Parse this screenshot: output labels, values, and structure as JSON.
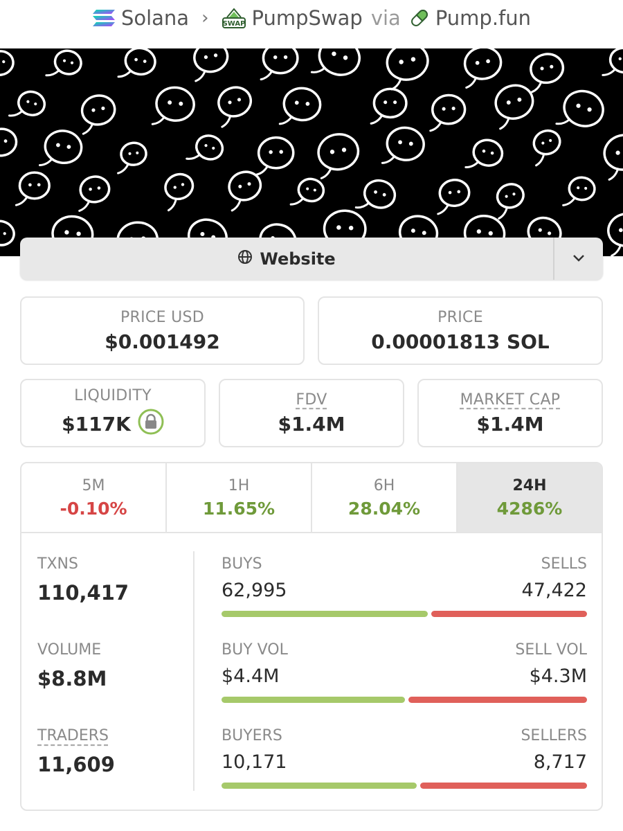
{
  "breadcrumb": {
    "chain": "Solana",
    "dex": "PumpSwap",
    "via": "via",
    "launchpad": "Pump.fun",
    "dex_badge": "SWAP"
  },
  "website_button": {
    "label": "Website"
  },
  "price_usd": {
    "label": "PRICE USD",
    "value": "$0.001492"
  },
  "price_native": {
    "label": "PRICE",
    "value": "0.00001813 SOL"
  },
  "liquidity": {
    "label": "LIQUIDITY",
    "value": "$117K"
  },
  "fdv": {
    "label": "FDV",
    "value": "$1.4M"
  },
  "market_cap": {
    "label": "MARKET CAP",
    "value": "$1.4M"
  },
  "periods": [
    {
      "label": "5M",
      "value": "-0.10%",
      "trend": "negative"
    },
    {
      "label": "1H",
      "value": "11.65%",
      "trend": "positive"
    },
    {
      "label": "6H",
      "value": "28.04%",
      "trend": "positive"
    },
    {
      "label": "24H",
      "value": "4286%",
      "trend": "positive",
      "selected": true
    }
  ],
  "stats": {
    "txns": {
      "label": "TXNS",
      "value": "110,417"
    },
    "volume": {
      "label": "VOLUME",
      "value": "$8.8M"
    },
    "traders": {
      "label": "TRADERS",
      "value": "11,609"
    },
    "buys": {
      "label": "BUYS",
      "value": "62,995"
    },
    "sells": {
      "label": "SELLS",
      "value": "47,422"
    },
    "buy_vol": {
      "label": "BUY VOL",
      "value": "$4.4M"
    },
    "sell_vol": {
      "label": "SELL VOL",
      "value": "$4.3M"
    },
    "buyers": {
      "label": "BUYERS",
      "value": "10,171"
    },
    "sellers": {
      "label": "SELLERS",
      "value": "8,717"
    }
  },
  "ratios": {
    "txns_buy_fraction": 0.57,
    "volume_buy_fraction": 0.506,
    "traders_buy_fraction": 0.538
  },
  "colors": {
    "positive": "#6f9a3a",
    "negative": "#d64545",
    "buy_bar": "#a6c96a",
    "sell_bar": "#e0605a",
    "lock_ring": "#8fbf55"
  },
  "icons": [
    "solana-icon",
    "pumpswap-icon",
    "pill-icon",
    "globe-icon",
    "chevron-down-icon",
    "lock-icon"
  ]
}
